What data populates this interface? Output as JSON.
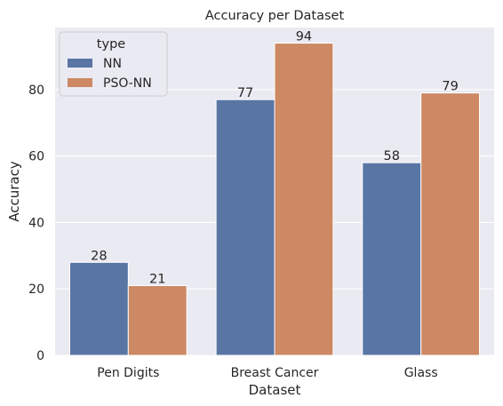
{
  "chart_data": {
    "type": "bar",
    "title": "Accuracy per Dataset",
    "xlabel": "Dataset",
    "ylabel": "Accuracy",
    "categories": [
      "Pen Digits",
      "Breast Cancer",
      "Glass"
    ],
    "series": [
      {
        "name": "NN",
        "values": [
          28,
          77,
          58
        ],
        "color": "#5875a4"
      },
      {
        "name": "PSO-NN",
        "values": [
          21,
          94,
          79
        ],
        "color": "#cc8963"
      }
    ],
    "ylim": [
      0,
      98.7
    ],
    "yticks": [
      0,
      20,
      40,
      60,
      80
    ],
    "grid": true,
    "legend": {
      "title": "type",
      "placement": "top-left"
    },
    "colors": {
      "background": "#eaeaf2",
      "grid": "#ffffff"
    }
  }
}
